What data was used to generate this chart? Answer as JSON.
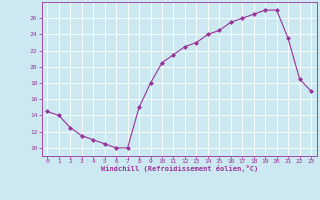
{
  "x": [
    0,
    1,
    2,
    3,
    4,
    5,
    6,
    7,
    8,
    9,
    10,
    11,
    12,
    13,
    14,
    15,
    16,
    17,
    18,
    19,
    20,
    21,
    22,
    23
  ],
  "y": [
    14.5,
    14.0,
    12.5,
    11.5,
    11.0,
    10.5,
    10.0,
    10.0,
    15.0,
    18.0,
    20.5,
    21.5,
    22.5,
    23.0,
    24.0,
    24.5,
    25.5,
    26.0,
    26.5,
    27.0,
    27.0,
    23.5,
    18.5,
    17.0
  ],
  "line_color": "#993399",
  "marker": "D",
  "marker_size": 2.0,
  "bg_color": "#cce8f0",
  "grid_color": "#ffffff",
  "xlabel": "Windchill (Refroidissement éolien,°C)",
  "xlim": [
    -0.5,
    23.5
  ],
  "ylim": [
    9.0,
    28.0
  ],
  "yticks": [
    10,
    12,
    14,
    16,
    18,
    20,
    22,
    24,
    26
  ],
  "xticks": [
    0,
    1,
    2,
    3,
    4,
    5,
    6,
    7,
    8,
    9,
    10,
    11,
    12,
    13,
    14,
    15,
    16,
    17,
    18,
    19,
    20,
    21,
    22,
    23
  ],
  "label_color": "#993399",
  "tick_color": "#993399",
  "spine_color": "#993399"
}
